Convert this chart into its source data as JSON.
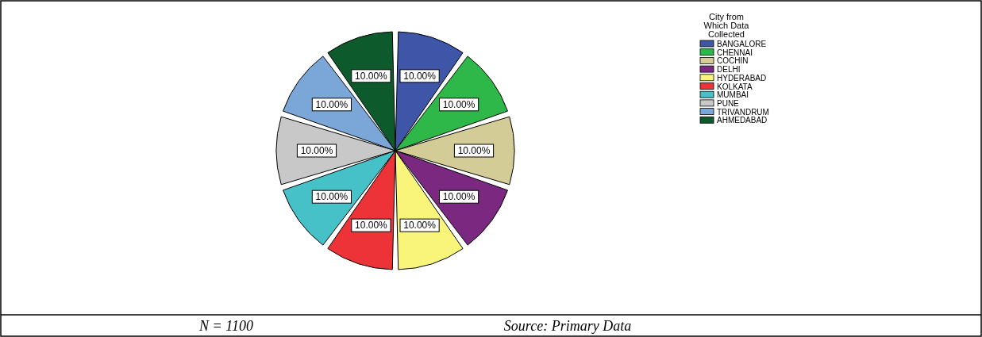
{
  "chart_data": {
    "type": "pie",
    "legend_title": "City from Which Data Collected",
    "legend": "top right",
    "categories": [
      "BANGALORE",
      "CHENNAI",
      "COCHIN",
      "DELHI",
      "HYDERABAD",
      "KOLKATA",
      "MUMBAI",
      "PUNE",
      "TRIVANDRUM",
      "AHMEDABAD"
    ],
    "values": [
      10,
      10,
      10,
      10,
      10,
      10,
      10,
      10,
      10,
      10
    ],
    "value_labels": [
      "10.00%",
      "10.00%",
      "10.00%",
      "10.00%",
      "10.00%",
      "10.00%",
      "10.00%",
      "10.00%",
      "10.00%",
      "10.00%"
    ],
    "colors": [
      "#3f56a8",
      "#2fb84a",
      "#d3cc97",
      "#7b2880",
      "#f8f57a",
      "#ee3338",
      "#47c1c8",
      "#c8c8c8",
      "#7aa7d8",
      "#0d5a2c"
    ],
    "annotations": [
      "N = 1100",
      "Source: Primary Data"
    ]
  }
}
